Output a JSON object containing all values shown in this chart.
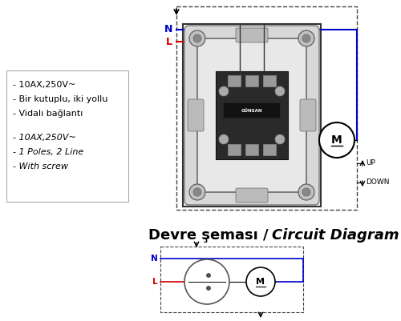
{
  "bg_color": "#ffffff",
  "title_bold": "Devre şeması / ",
  "title_italic": "Circuit Diagram",
  "title_fontsize": 13,
  "spec_lines_normal": [
    "- 10AX,250V~",
    "- Bir kutuplu, iki yollu",
    "- Vidalı bağlantı"
  ],
  "spec_lines_italic": [
    "- 10AX,250V~",
    "- 1 Poles, 2 Line",
    "- With screw"
  ],
  "N_color": "#0000cc",
  "L_color": "#cc0000",
  "black": "#000000",
  "dashed_color": "#444444",
  "switch_gray": "#c8c8c8",
  "switch_dark": "#555555"
}
